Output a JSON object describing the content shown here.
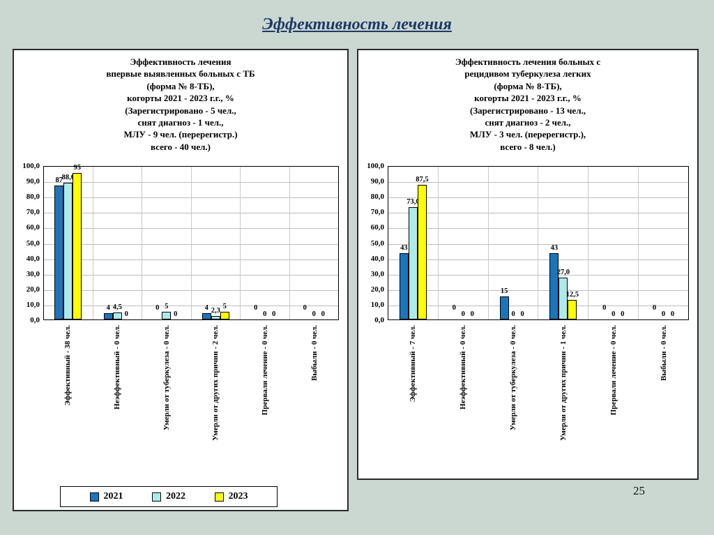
{
  "slide": {
    "title": "Эффективность лечения",
    "page_number": "25"
  },
  "legend": {
    "items": [
      {
        "label": "2021",
        "color": "#1b75bc"
      },
      {
        "label": "2022",
        "color": "#aeeaea"
      },
      {
        "label": "2023",
        "color": "#ffff00"
      }
    ]
  },
  "chart_data": [
    {
      "type": "bar",
      "title": "Эффективность лечения\nвпервые выявленных больных с ТБ\n(форма № 8-ТБ),\nкогорты 2021 - 2023 г.г., %\n(Зарегистрировано - 5 чел.,\nснят диагноз - 1 чел.,\nМЛУ - 9 чел. (перерегистр.)\nвсего - 40 чел.)",
      "categories": [
        "Эффективный - 38 чел.",
        "Неэффективный - 0 чел.",
        "Умерли от туберкулеза - 0 чел.",
        "Умерли от других причин - 2 чел.",
        "Прервали лечение - 0 чел.",
        "Выбыли - 0 чел."
      ],
      "series": [
        {
          "name": "2021",
          "color": "#1b75bc",
          "values": [
            87,
            4,
            0,
            4,
            0,
            0
          ],
          "labels": [
            "87",
            "4",
            "0",
            "4",
            "0",
            "0"
          ]
        },
        {
          "name": "2022",
          "color": "#aeeaea",
          "values": [
            88.6,
            4.5,
            5,
            2.3,
            0,
            0
          ],
          "labels": [
            "88,6",
            "4,5",
            "5",
            "2,3",
            "0",
            "0"
          ]
        },
        {
          "name": "2023",
          "color": "#ffff00",
          "values": [
            95,
            0,
            0,
            5,
            0,
            0
          ],
          "labels": [
            "95",
            "0",
            "0",
            "5",
            "0",
            "0"
          ]
        }
      ],
      "ylim": [
        0,
        100
      ],
      "ytick_labels": [
        "100,0",
        "90,0",
        "80,0",
        "70,0",
        "60,0",
        "50,0",
        "40,0",
        "30,0",
        "20,0",
        "10,0",
        "0,0"
      ],
      "grid": true,
      "legend_position": "bottom-left"
    },
    {
      "type": "bar",
      "title": "Эффективность лечения больных с\nрецидивом туберкулеза легких\n(форма № 8-ТБ),\nкогорты 2021 - 2023 г.г., %\n(Зарегистрировано - 13 чел.,\nснят диагноз - 2 чел.,\nМЛУ - 3 чел. (перерегистр.),\nвсего - 8 чел.)",
      "categories": [
        "Эффективный - 7 чел.",
        "Неэффективный - 0 чел.",
        "Умерли от туберкулеза - 0 чел.",
        "Умерли от других причин - 1 чел.",
        "Прервали лечение - 0 чел.",
        "Выбыли - 0 чел."
      ],
      "series": [
        {
          "name": "2021",
          "color": "#1b75bc",
          "values": [
            43,
            0,
            15,
            43,
            0,
            0
          ],
          "labels": [
            "43",
            "0",
            "15",
            "43",
            "0",
            "0"
          ]
        },
        {
          "name": "2022",
          "color": "#aeeaea",
          "values": [
            73,
            0,
            0,
            27,
            0,
            0
          ],
          "labels": [
            "73,0",
            "0",
            "0",
            "27,0",
            "0",
            "0"
          ]
        },
        {
          "name": "2023",
          "color": "#ffff00",
          "values": [
            87.5,
            0,
            0,
            12.5,
            0,
            0
          ],
          "labels": [
            "87,5",
            "0",
            "0",
            "12,5",
            "0",
            "0"
          ]
        }
      ],
      "ylim": [
        0,
        100
      ],
      "ytick_labels": [
        "100,0",
        "90,0",
        "80,0",
        "70,0",
        "60,0",
        "50,0",
        "40,0",
        "30,0",
        "20,0",
        "10,0",
        "0,0"
      ],
      "grid": true,
      "legend_position": "none"
    }
  ]
}
